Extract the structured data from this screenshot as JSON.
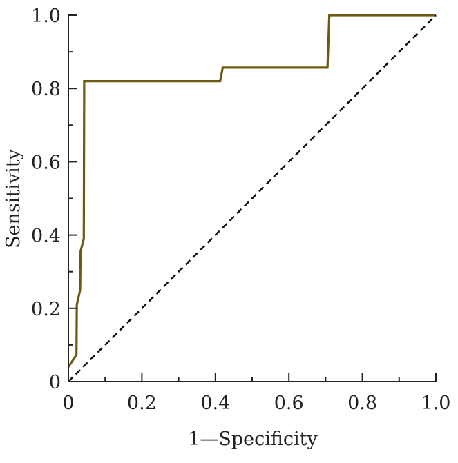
{
  "chart_data": {
    "type": "line",
    "title": "",
    "xlabel": "1—Specificity",
    "ylabel": "Sensitivity",
    "xlim": [
      0,
      1.0
    ],
    "ylim": [
      0,
      1.0
    ],
    "x_ticks": [
      {
        "value": 0,
        "label": "0"
      },
      {
        "value": 0.2,
        "label": "0.2"
      },
      {
        "value": 0.4,
        "label": "0.4"
      },
      {
        "value": 0.6,
        "label": "0.6"
      },
      {
        "value": 0.8,
        "label": "0.8"
      },
      {
        "value": 1.0,
        "label": "1.0"
      }
    ],
    "y_ticks": [
      {
        "value": 0,
        "label": "0"
      },
      {
        "value": 0.2,
        "label": "0.2"
      },
      {
        "value": 0.4,
        "label": "0.4"
      },
      {
        "value": 0.6,
        "label": "0.6"
      },
      {
        "value": 0.8,
        "label": "0.8"
      },
      {
        "value": 1.0,
        "label": "1.0"
      }
    ],
    "minor_ticks": [
      0.1,
      0.3,
      0.5,
      0.7,
      0.9
    ],
    "grid": false,
    "legend": "none",
    "series": [
      {
        "style": "solid",
        "color": "#6b5a10",
        "points": [
          [
            0,
            0.04
          ],
          [
            0.022,
            0.073
          ],
          [
            0.023,
            0.21
          ],
          [
            0.032,
            0.25
          ],
          [
            0.033,
            0.355
          ],
          [
            0.042,
            0.39
          ],
          [
            0.043,
            0.82
          ],
          [
            0.413,
            0.82
          ],
          [
            0.42,
            0.857
          ],
          [
            0.705,
            0.857
          ],
          [
            0.71,
            1.0
          ],
          [
            1.0,
            1.0
          ]
        ]
      },
      {
        "style": "dashed",
        "color": "#111111",
        "points": [
          [
            0,
            0
          ],
          [
            1.0,
            1.0
          ]
        ]
      }
    ]
  }
}
